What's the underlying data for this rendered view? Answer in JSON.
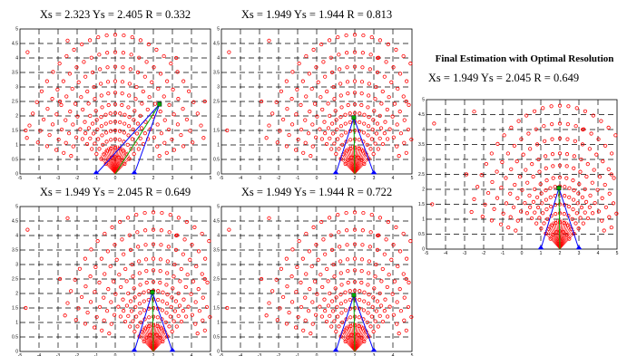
{
  "side_title": "Final Estimation with Optimal Resolution",
  "colors": {
    "circles": "#ff0000",
    "baseline": "#0000ff",
    "estimate": "#00aa00",
    "grid": "#000000"
  },
  "chart_data": [
    {
      "type": "scatter",
      "title": "Xs = 2.323   Ys = 2.405   R = 0.332",
      "xlim": [
        -5,
        5
      ],
      "ylim": [
        0,
        5
      ],
      "xticks": [
        -5,
        -4,
        -3,
        -2,
        -1,
        0,
        1,
        2,
        3,
        4,
        5
      ],
      "yticks": [
        0,
        0.5,
        1,
        1.5,
        2,
        2.5,
        3,
        3.5,
        4,
        4.5,
        5
      ],
      "receivers": [
        [
          -1,
          0
        ],
        [
          1,
          0
        ]
      ],
      "source": [
        2.323,
        2.405
      ],
      "grid": "dashed",
      "fan_center": 0
    },
    {
      "type": "scatter",
      "title": "Xs = 1.949   Ys = 1.944   R = 0.813",
      "xlim": [
        -5,
        5
      ],
      "ylim": [
        0,
        5
      ],
      "xticks": [
        -5,
        -4,
        -3,
        -2,
        -1,
        0,
        1,
        2,
        3,
        4,
        5
      ],
      "yticks": [
        0,
        0.5,
        1,
        1.5,
        2,
        2.5,
        3,
        3.5,
        4,
        4.5,
        5
      ],
      "receivers": [
        [
          1,
          0
        ],
        [
          3,
          0
        ]
      ],
      "source": [
        1.949,
        1.944
      ],
      "grid": "dashed",
      "fan_center": 2
    },
    {
      "type": "scatter",
      "title": "Xs = 1.949   Ys = 2.045   R = 0.649",
      "xlim": [
        -5,
        5
      ],
      "ylim": [
        0,
        5
      ],
      "xticks": [
        -5,
        -4,
        -3,
        -2,
        -1,
        0,
        1,
        2,
        3,
        4,
        5
      ],
      "yticks": [
        0,
        0.5,
        1,
        1.5,
        2,
        2.5,
        3,
        3.5,
        4,
        4.5,
        5
      ],
      "receivers": [
        [
          1,
          0
        ],
        [
          3,
          0
        ]
      ],
      "source": [
        1.949,
        2.045
      ],
      "grid": "dashed",
      "fan_center": 2
    },
    {
      "type": "scatter",
      "title": "Xs = 1.949   Ys = 1.944   R = 0.722",
      "xlim": [
        -5,
        5
      ],
      "ylim": [
        0,
        5
      ],
      "xticks": [
        -5,
        -4,
        -3,
        -2,
        -1,
        0,
        1,
        2,
        3,
        4,
        5
      ],
      "yticks": [
        0,
        0.5,
        1,
        1.5,
        2,
        2.5,
        3,
        3.5,
        4,
        4.5,
        5
      ],
      "receivers": [
        [
          1,
          0
        ],
        [
          3,
          0
        ]
      ],
      "source": [
        1.949,
        1.944
      ],
      "grid": "dashed",
      "fan_center": 2
    },
    {
      "type": "scatter",
      "title": "Xs = 1.949   Ys = 2.045   R = 0.649",
      "xlim": [
        -5,
        5
      ],
      "ylim": [
        0,
        5
      ],
      "xticks": [
        -5,
        -4,
        -3,
        -2,
        -1,
        0,
        1,
        2,
        3,
        4,
        5
      ],
      "yticks": [
        0,
        0.5,
        1,
        1.5,
        2,
        2.5,
        3,
        3.5,
        4,
        4.5,
        5
      ],
      "receivers": [
        [
          1,
          0
        ],
        [
          3,
          0
        ]
      ],
      "source": [
        1.949,
        2.045
      ],
      "grid": "dashed",
      "fan_center": 2
    }
  ]
}
